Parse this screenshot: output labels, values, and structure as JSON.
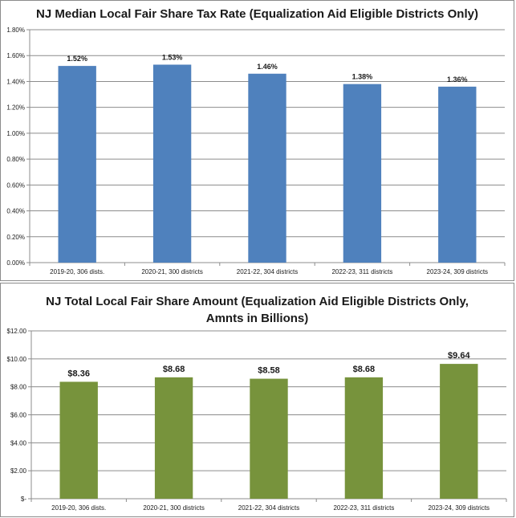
{
  "chart_data": [
    {
      "type": "bar",
      "title": "NJ Median Local Fair Share Tax Rate (Equalization Aid Eligible Districts Only)",
      "categories": [
        "2019-20, 306 dists.",
        "2020-21, 300 districts",
        "2021-22, 304 districts",
        "2022-23, 311 districts",
        "2023-24, 309 districts"
      ],
      "values": [
        1.52,
        1.53,
        1.46,
        1.38,
        1.36
      ],
      "value_labels": [
        "1.52%",
        "1.53%",
        "1.46%",
        "1.38%",
        "1.36%"
      ],
      "ylim": [
        0,
        1.8
      ],
      "yticks": [
        0,
        0.2,
        0.4,
        0.6,
        0.8,
        1.0,
        1.2,
        1.4,
        1.6,
        1.8
      ],
      "ytick_labels": [
        "0.00%",
        "0.20%",
        "0.40%",
        "0.60%",
        "0.80%",
        "1.00%",
        "1.20%",
        "1.40%",
        "1.60%",
        "1.80%"
      ],
      "xlabel": "",
      "ylabel": "",
      "grid": true,
      "bar_color": "#4f81bd"
    },
    {
      "type": "bar",
      "title": "NJ Total Local Fair Share Amount (Equalization Aid Eligible Districts Only, Amnts in Billions)",
      "title_lines": [
        "NJ Total Local Fair Share Amount (Equalization Aid Eligible Districts Only,",
        "Amnts in Billions)"
      ],
      "categories": [
        "2019-20, 306 dists.",
        "2020-21, 300 districts",
        "2021-22, 304 districts",
        "2022-23, 311 districts",
        "2023-24, 309 districts"
      ],
      "values": [
        8.36,
        8.68,
        8.58,
        8.68,
        9.64
      ],
      "value_labels": [
        "$8.36",
        "$8.68",
        "$8.58",
        "$8.68",
        "$9.64"
      ],
      "ylim": [
        0,
        12
      ],
      "yticks": [
        0,
        2,
        4,
        6,
        8,
        10,
        12
      ],
      "ytick_labels": [
        "$-",
        "$2.00",
        "$4.00",
        "$6.00",
        "$8.00",
        "$10.00",
        "$12.00"
      ],
      "xlabel": "",
      "ylabel": "",
      "grid": true,
      "bar_color": "#77933c"
    }
  ]
}
